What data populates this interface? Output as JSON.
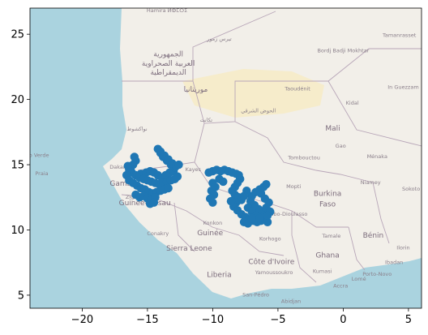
{
  "chart_data": {
    "type": "scatter",
    "title": "",
    "xlabel": "",
    "ylabel": "",
    "xlim": [
      -24,
      6
    ],
    "ylim": [
      4,
      27
    ],
    "xticks": [
      -20,
      -15,
      -10,
      -5,
      0,
      5
    ],
    "yticks": [
      5,
      10,
      15,
      20,
      25
    ],
    "grid": false,
    "legend": "none",
    "marker_color": "#1f77b4",
    "basemap": {
      "ocean_color": "#aad3df",
      "land_color": "#f2efe9",
      "desert_color": "#f6eccb",
      "border_color": "#b8a6b8",
      "labels": [
        {
          "text": "Hamira ⵍⵀⵎⵔⵉ",
          "lon": -13.5,
          "lat": 26.7,
          "size": "small"
        },
        {
          "text": "الجمهورية",
          "lon": -13.4,
          "lat": 23.3,
          "size": "medium"
        },
        {
          "text": "العربية الصحراوية",
          "lon": -13.4,
          "lat": 22.6,
          "size": "medium"
        },
        {
          "text": "الديمقراطية",
          "lon": -13.4,
          "lat": 21.9,
          "size": "medium"
        },
        {
          "text": "موريتانيا",
          "lon": -11.3,
          "lat": 20.6,
          "size": "medium"
        },
        {
          "text": "تيرس زمور",
          "lon": -9.5,
          "lat": 24.5,
          "size": "small"
        },
        {
          "text": "Taoudénit",
          "lon": -3.5,
          "lat": 20.7,
          "size": "small"
        },
        {
          "text": "الحوض الشرقي",
          "lon": -6.5,
          "lat": 19.0,
          "size": "small"
        },
        {
          "text": "تكانت",
          "lon": -10.5,
          "lat": 18.3,
          "size": "small"
        },
        {
          "text": "نواكشوط",
          "lon": -15.8,
          "lat": 17.6,
          "size": "small"
        },
        {
          "text": "Mali",
          "lon": -0.8,
          "lat": 17.6,
          "size": "medium"
        },
        {
          "text": "Gao",
          "lon": -0.2,
          "lat": 16.3,
          "size": "small"
        },
        {
          "text": "Ménaka",
          "lon": 2.6,
          "lat": 15.5,
          "size": "small"
        },
        {
          "text": "Tombouctou",
          "lon": -3.0,
          "lat": 15.4,
          "size": "small"
        },
        {
          "text": "Kidal",
          "lon": 0.7,
          "lat": 19.6,
          "size": "small"
        },
        {
          "text": "Bordj Badji Mokhtar",
          "lon": 0.0,
          "lat": 23.6,
          "size": "small"
        },
        {
          "text": "Tamanrasset",
          "lon": 4.3,
          "lat": 24.8,
          "size": "small"
        },
        {
          "text": "In Guezzam",
          "lon": 4.6,
          "lat": 20.8,
          "size": "small"
        },
        {
          "text": "Mopti",
          "lon": -3.8,
          "lat": 13.2,
          "size": "small"
        },
        {
          "text": "Dakar",
          "lon": -17.3,
          "lat": 14.7,
          "size": "small"
        },
        {
          "text": "Cabo Verde",
          "lon": -23.7,
          "lat": 15.6,
          "size": "small"
        },
        {
          "text": "Praia",
          "lon": -23.1,
          "lat": 14.2,
          "size": "small"
        },
        {
          "text": "Kayes",
          "lon": -11.5,
          "lat": 14.5,
          "size": "small"
        },
        {
          "text": "Gambia",
          "lon": -16.8,
          "lat": 13.4,
          "size": "medium"
        },
        {
          "text": "Ziguinchor",
          "lon": -15.6,
          "lat": 12.4,
          "size": "small"
        },
        {
          "text": "Guinée-Bissau",
          "lon": -15.2,
          "lat": 11.9,
          "size": "medium"
        },
        {
          "text": "Conakry",
          "lon": -14.2,
          "lat": 9.6,
          "size": "small"
        },
        {
          "text": "Guinée",
          "lon": -10.2,
          "lat": 9.6,
          "size": "medium"
        },
        {
          "text": "Konkon",
          "lon": -10.0,
          "lat": 10.4,
          "size": "small"
        },
        {
          "text": "Sierra Leone",
          "lon": -11.8,
          "lat": 8.4,
          "size": "medium"
        },
        {
          "text": "Liberia",
          "lon": -9.5,
          "lat": 6.4,
          "size": "medium"
        },
        {
          "text": "Korhogo",
          "lon": -5.6,
          "lat": 9.2,
          "size": "small"
        },
        {
          "text": "Côte d'Ivoire",
          "lon": -5.5,
          "lat": 7.4,
          "size": "medium"
        },
        {
          "text": "Yamoussoukro",
          "lon": -5.3,
          "lat": 6.6,
          "size": "small"
        },
        {
          "text": "San-Pédro",
          "lon": -6.7,
          "lat": 4.9,
          "size": "small"
        },
        {
          "text": "Abidjan",
          "lon": -4.0,
          "lat": 4.4,
          "size": "small"
        },
        {
          "text": "Burkina",
          "lon": -1.2,
          "lat": 12.6,
          "size": "medium"
        },
        {
          "text": "Faso",
          "lon": -1.2,
          "lat": 11.8,
          "size": "medium"
        },
        {
          "text": "Bobo-Dioulasso",
          "lon": -4.3,
          "lat": 11.1,
          "size": "small"
        },
        {
          "text": "Tamale",
          "lon": -0.9,
          "lat": 9.4,
          "size": "small"
        },
        {
          "text": "Ghana",
          "lon": -1.2,
          "lat": 7.9,
          "size": "medium"
        },
        {
          "text": "Kumasi",
          "lon": -1.6,
          "lat": 6.7,
          "size": "small"
        },
        {
          "text": "Accra",
          "lon": -0.2,
          "lat": 5.6,
          "size": "small"
        },
        {
          "text": "Lomé",
          "lon": 1.2,
          "lat": 6.1,
          "size": "small"
        },
        {
          "text": "Porto-Novo",
          "lon": 2.6,
          "lat": 6.5,
          "size": "small"
        },
        {
          "text": "Niamey",
          "lon": 2.1,
          "lat": 13.5,
          "size": "small"
        },
        {
          "text": "Bénin",
          "lon": 2.3,
          "lat": 9.4,
          "size": "medium"
        },
        {
          "text": "Ilorin",
          "lon": 4.6,
          "lat": 8.5,
          "size": "small"
        },
        {
          "text": "Ibadan",
          "lon": 3.9,
          "lat": 7.4,
          "size": "small"
        },
        {
          "text": "Sokoto",
          "lon": 5.2,
          "lat": 13.0,
          "size": "small"
        }
      ]
    },
    "series": [
      {
        "points": [
          [
            -16.0,
            15.6
          ],
          [
            -15.9,
            15.3
          ],
          [
            -16.1,
            15.0
          ],
          [
            -16.3,
            14.7
          ],
          [
            -16.2,
            14.4
          ],
          [
            -15.9,
            14.2
          ],
          [
            -15.5,
            14.3
          ],
          [
            -15.1,
            14.4
          ],
          [
            -14.8,
            14.5
          ],
          [
            -14.5,
            14.4
          ],
          [
            -14.2,
            14.2
          ],
          [
            -13.9,
            14.0
          ],
          [
            -13.6,
            14.2
          ],
          [
            -13.3,
            14.4
          ],
          [
            -13.0,
            14.5
          ],
          [
            -12.9,
            14.8
          ],
          [
            -13.2,
            15.0
          ],
          [
            -13.5,
            15.3
          ],
          [
            -13.8,
            15.6
          ],
          [
            -14.0,
            15.9
          ],
          [
            -14.2,
            16.2
          ],
          [
            -14.0,
            16.0
          ],
          [
            -13.7,
            15.7
          ],
          [
            -13.4,
            15.4
          ],
          [
            -13.1,
            15.1
          ],
          [
            -12.8,
            14.9
          ],
          [
            -12.6,
            15.0
          ],
          [
            -15.6,
            14.0
          ],
          [
            -15.3,
            13.9
          ],
          [
            -15.0,
            13.8
          ],
          [
            -14.7,
            13.7
          ],
          [
            -14.4,
            13.6
          ],
          [
            -14.1,
            13.5
          ],
          [
            -13.8,
            13.6
          ],
          [
            -13.5,
            13.7
          ],
          [
            -13.2,
            13.8
          ],
          [
            -12.9,
            13.9
          ],
          [
            -12.7,
            14.1
          ],
          [
            -16.4,
            14.6
          ],
          [
            -16.5,
            14.9
          ],
          [
            -16.6,
            14.2
          ],
          [
            -16.4,
            13.8
          ],
          [
            -16.1,
            13.6
          ],
          [
            -15.8,
            13.4
          ],
          [
            -15.5,
            13.2
          ],
          [
            -15.2,
            13.1
          ],
          [
            -14.9,
            12.9
          ],
          [
            -14.6,
            12.8
          ],
          [
            -14.3,
            12.9
          ],
          [
            -14.0,
            13.0
          ],
          [
            -13.7,
            13.1
          ],
          [
            -13.4,
            13.2
          ],
          [
            -15.9,
            12.7
          ],
          [
            -15.6,
            12.5
          ],
          [
            -15.3,
            12.6
          ],
          [
            -15.0,
            12.4
          ],
          [
            -14.7,
            12.3
          ],
          [
            -14.4,
            12.5
          ],
          [
            -14.8,
            12.0
          ],
          [
            -14.5,
            12.1
          ],
          [
            -10.3,
            14.4
          ],
          [
            -10.0,
            14.5
          ],
          [
            -9.7,
            14.6
          ],
          [
            -9.4,
            14.5
          ],
          [
            -9.1,
            14.6
          ],
          [
            -8.8,
            14.5
          ],
          [
            -8.5,
            14.4
          ],
          [
            -8.2,
            14.3
          ],
          [
            -8.0,
            14.2
          ],
          [
            -7.9,
            13.9
          ],
          [
            -8.1,
            13.6
          ],
          [
            -8.3,
            13.3
          ],
          [
            -8.5,
            13.0
          ],
          [
            -8.3,
            12.7
          ],
          [
            -8.0,
            12.5
          ],
          [
            -7.8,
            12.3
          ],
          [
            -8.2,
            12.1
          ],
          [
            -8.4,
            11.8
          ],
          [
            -8.1,
            11.5
          ],
          [
            -7.8,
            11.2
          ],
          [
            -7.5,
            11.0
          ],
          [
            -7.2,
            10.8
          ],
          [
            -6.9,
            10.7
          ],
          [
            -6.6,
            10.6
          ],
          [
            -6.3,
            10.7
          ],
          [
            -6.0,
            10.8
          ],
          [
            -5.8,
            10.6
          ],
          [
            -6.2,
            11.3
          ],
          [
            -6.5,
            11.6
          ],
          [
            -6.8,
            11.9
          ],
          [
            -7.1,
            12.2
          ],
          [
            -7.0,
            12.6
          ],
          [
            -6.7,
            12.9
          ],
          [
            -6.4,
            13.1
          ],
          [
            -6.1,
            13.3
          ],
          [
            -5.9,
            13.5
          ],
          [
            -6.3,
            12.8
          ],
          [
            -6.0,
            12.4
          ],
          [
            -5.7,
            12.1
          ],
          [
            -5.9,
            11.7
          ],
          [
            -5.6,
            11.4
          ],
          [
            -5.8,
            11.1
          ],
          [
            -10.0,
            13.6
          ],
          [
            -9.8,
            13.3
          ],
          [
            -10.1,
            13.0
          ],
          [
            -9.9,
            12.7
          ],
          [
            -10.2,
            12.4
          ],
          [
            -10.0,
            12.1
          ],
          [
            -9.5,
            13.9
          ],
          [
            -9.2,
            13.7
          ],
          [
            -7.4,
            13.0
          ],
          [
            -7.6,
            12.6
          ],
          [
            -7.3,
            11.7
          ],
          [
            -7.0,
            11.4
          ],
          [
            -6.7,
            11.1
          ],
          [
            -6.4,
            10.9
          ],
          [
            -7.6,
            10.6
          ],
          [
            -7.3,
            10.5
          ],
          [
            -7.0,
            10.9
          ],
          [
            -8.6,
            12.2
          ]
        ]
      }
    ]
  }
}
